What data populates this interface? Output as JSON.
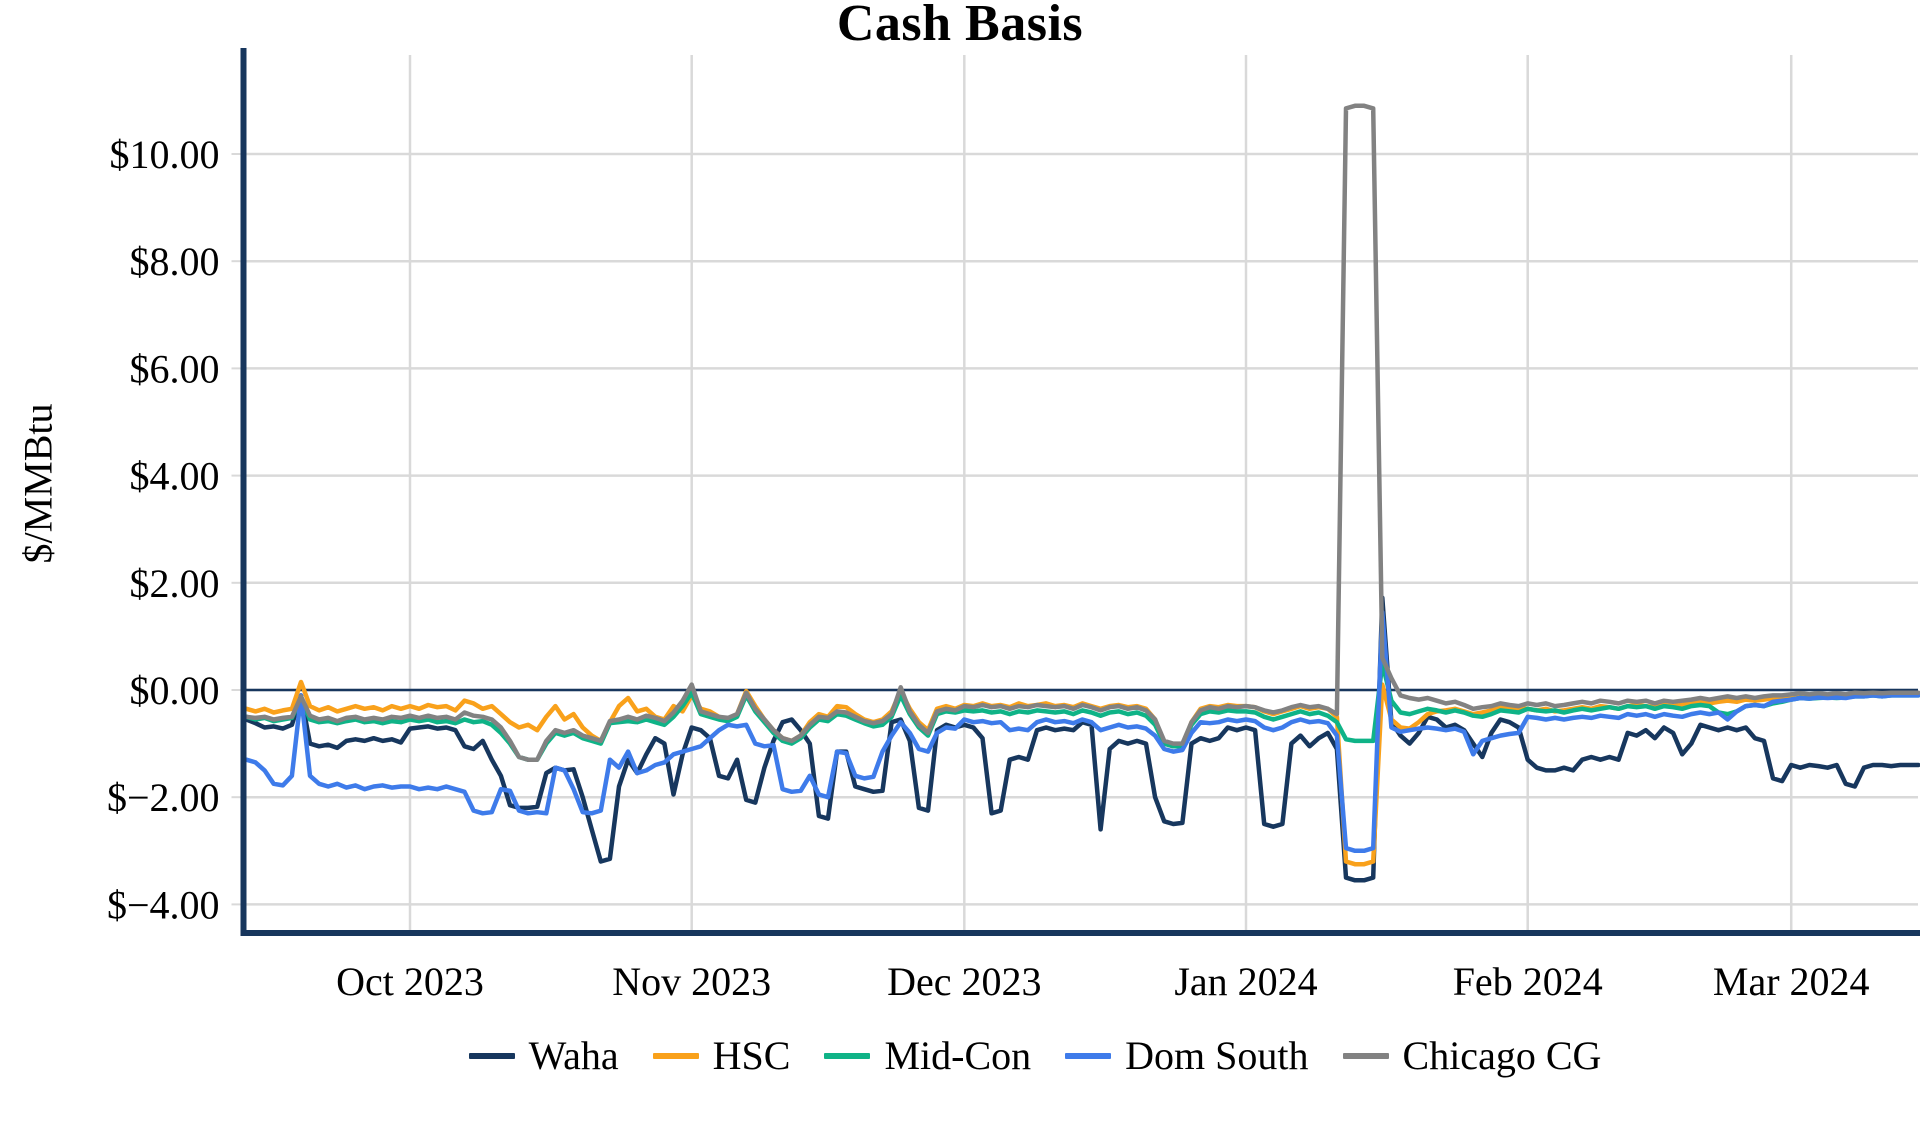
{
  "title": "Cash Basis",
  "y_axis": {
    "label": "$/MMBtu",
    "ticks": [
      {
        "value": 10,
        "label": "$10.00"
      },
      {
        "value": 8,
        "label": "$8.00"
      },
      {
        "value": 6,
        "label": "$6.00"
      },
      {
        "value": 4,
        "label": "$4.00"
      },
      {
        "value": 2,
        "label": "$2.00"
      },
      {
        "value": 0,
        "label": "$0.00"
      },
      {
        "value": -2,
        "label": "$−2.00"
      },
      {
        "value": -4,
        "label": "$−4.00"
      }
    ]
  },
  "x_axis": {
    "ticks": [
      {
        "day": 0,
        "label": "Oct 2023"
      },
      {
        "day": 31,
        "label": "Nov 2023"
      },
      {
        "day": 61,
        "label": "Dec 2023"
      },
      {
        "day": 92,
        "label": "Jan 2024"
      },
      {
        "day": 123,
        "label": "Feb 2024"
      },
      {
        "day": 152,
        "label": "Mar 2024"
      }
    ]
  },
  "legend": {
    "items": [
      {
        "label": "Waha",
        "color": "#17375e"
      },
      {
        "label": "HSC",
        "color": "#f9a11b"
      },
      {
        "label": "Mid-Con",
        "color": "#0fb387"
      },
      {
        "label": "Dom South",
        "color": "#3e7bea"
      },
      {
        "label": "Chicago CG",
        "color": "#828282"
      }
    ]
  },
  "colors": {
    "axis": "#17365d",
    "zero_line": "#17365d",
    "gridline": "#d9d9d9"
  },
  "chart_data": {
    "type": "line",
    "title": "Cash Basis",
    "ylabel": "$/MMBtu",
    "ylim": [
      -4.5,
      11.9
    ],
    "grid": true,
    "legend_position": "bottom",
    "x_unit": "days relative to Oct 1 2023",
    "start_day": -18,
    "series": [
      {
        "name": "Waha",
        "color": "#17375e",
        "values": [
          -0.55,
          -0.62,
          -0.7,
          -0.68,
          -0.72,
          -0.65,
          -0.1,
          -1.0,
          -1.05,
          -1.02,
          -1.08,
          -0.95,
          -0.92,
          -0.95,
          -0.9,
          -0.95,
          -0.92,
          -0.98,
          -0.72,
          -0.7,
          -0.68,
          -0.72,
          -0.7,
          -0.75,
          -1.05,
          -1.1,
          -0.95,
          -1.3,
          -1.6,
          -2.15,
          -2.2,
          -2.2,
          -2.18,
          -1.55,
          -1.45,
          -1.5,
          -1.48,
          -2.0,
          -2.6,
          -3.2,
          -3.15,
          -1.8,
          -1.3,
          -1.55,
          -1.2,
          -0.9,
          -1.0,
          -1.95,
          -1.2,
          -0.7,
          -0.75,
          -0.9,
          -1.6,
          -1.65,
          -1.3,
          -2.05,
          -2.1,
          -1.45,
          -0.95,
          -0.6,
          -0.55,
          -0.75,
          -1.0,
          -2.35,
          -2.4,
          -1.15,
          -1.15,
          -1.8,
          -1.85,
          -1.9,
          -1.88,
          -0.6,
          -0.55,
          -0.95,
          -2.2,
          -2.25,
          -0.75,
          -0.65,
          -0.7,
          -0.65,
          -0.7,
          -0.9,
          -2.3,
          -2.25,
          -1.3,
          -1.25,
          -1.3,
          -0.75,
          -0.7,
          -0.75,
          -0.72,
          -0.75,
          -0.6,
          -0.65,
          -2.6,
          -1.1,
          -0.95,
          -1.0,
          -0.95,
          -1.0,
          -2.0,
          -2.45,
          -2.5,
          -2.48,
          -1.0,
          -0.9,
          -0.95,
          -0.9,
          -0.7,
          -0.75,
          -0.7,
          -0.75,
          -2.5,
          -2.55,
          -2.5,
          -1.0,
          -0.85,
          -1.05,
          -0.9,
          -0.8,
          -1.1,
          -3.5,
          -3.55,
          -3.55,
          -3.5,
          1.72,
          -0.6,
          -0.85,
          -1.0,
          -0.8,
          -0.5,
          -0.55,
          -0.7,
          -0.65,
          -0.75,
          -1.0,
          -1.25,
          -0.8,
          -0.55,
          -0.6,
          -0.7,
          -1.3,
          -1.45,
          -1.5,
          -1.5,
          -1.45,
          -1.5,
          -1.3,
          -1.25,
          -1.3,
          -1.25,
          -1.3,
          -0.8,
          -0.85,
          -0.75,
          -0.9,
          -0.7,
          -0.8,
          -1.2,
          -1.0,
          -0.65,
          -0.7,
          -0.75,
          -0.7,
          -0.75,
          -0.7,
          -0.9,
          -0.95,
          -1.65,
          -1.7,
          -1.4,
          -1.45,
          -1.4,
          -1.42,
          -1.45,
          -1.4,
          -1.75,
          -1.8,
          -1.45,
          -1.4,
          -1.4,
          -1.42,
          -1.4,
          -1.4,
          -1.4
        ]
      },
      {
        "name": "HSC",
        "color": "#f9a11b",
        "values": [
          -0.35,
          -0.4,
          -0.35,
          -0.42,
          -0.38,
          -0.35,
          0.15,
          -0.3,
          -0.38,
          -0.32,
          -0.4,
          -0.35,
          -0.3,
          -0.35,
          -0.32,
          -0.38,
          -0.3,
          -0.35,
          -0.3,
          -0.35,
          -0.28,
          -0.32,
          -0.3,
          -0.38,
          -0.2,
          -0.25,
          -0.35,
          -0.3,
          -0.45,
          -0.6,
          -0.7,
          -0.65,
          -0.75,
          -0.5,
          -0.3,
          -0.55,
          -0.45,
          -0.7,
          -0.85,
          -0.95,
          -0.6,
          -0.3,
          -0.15,
          -0.4,
          -0.35,
          -0.5,
          -0.55,
          -0.3,
          -0.4,
          -0.1,
          -0.35,
          -0.4,
          -0.5,
          -0.55,
          -0.45,
          -0.02,
          -0.3,
          -0.55,
          -0.75,
          -0.9,
          -0.95,
          -0.85,
          -0.6,
          -0.45,
          -0.5,
          -0.3,
          -0.32,
          -0.45,
          -0.55,
          -0.6,
          -0.55,
          -0.4,
          -0.02,
          -0.35,
          -0.6,
          -0.75,
          -0.35,
          -0.3,
          -0.35,
          -0.28,
          -0.3,
          -0.25,
          -0.3,
          -0.28,
          -0.32,
          -0.25,
          -0.3,
          -0.28,
          -0.25,
          -0.3,
          -0.28,
          -0.32,
          -0.25,
          -0.3,
          -0.35,
          -0.3,
          -0.28,
          -0.32,
          -0.3,
          -0.35,
          -0.55,
          -1.0,
          -1.05,
          -1.05,
          -0.6,
          -0.35,
          -0.3,
          -0.32,
          -0.28,
          -0.3,
          -0.3,
          -0.32,
          -0.4,
          -0.45,
          -0.4,
          -0.35,
          -0.3,
          -0.35,
          -0.32,
          -0.35,
          -0.5,
          -3.2,
          -3.25,
          -3.25,
          -3.2,
          0.1,
          -0.55,
          -0.7,
          -0.72,
          -0.6,
          -0.45,
          -0.4,
          -0.38,
          -0.35,
          -0.4,
          -0.45,
          -0.42,
          -0.38,
          -0.3,
          -0.32,
          -0.35,
          -0.35,
          -0.38,
          -0.35,
          -0.4,
          -0.38,
          -0.35,
          -0.32,
          -0.35,
          -0.3,
          -0.32,
          -0.35,
          -0.3,
          -0.28,
          -0.3,
          -0.32,
          -0.28,
          -0.3,
          -0.28,
          -0.25,
          -0.22,
          -0.25,
          -0.22,
          -0.2,
          -0.22,
          -0.18,
          -0.2,
          -0.18,
          -0.15,
          -0.15,
          -0.12,
          -0.1,
          -0.12,
          -0.1,
          -0.12,
          -0.1,
          -0.12,
          -0.1,
          -0.08,
          -0.1,
          -0.08,
          -0.1,
          -0.08,
          -0.08,
          -0.08
        ]
      },
      {
        "name": "Mid-Con",
        "color": "#0fb387",
        "values": [
          -0.5,
          -0.55,
          -0.52,
          -0.58,
          -0.55,
          -0.52,
          -0.15,
          -0.55,
          -0.6,
          -0.58,
          -0.62,
          -0.58,
          -0.55,
          -0.6,
          -0.58,
          -0.62,
          -0.58,
          -0.6,
          -0.55,
          -0.58,
          -0.55,
          -0.6,
          -0.58,
          -0.62,
          -0.55,
          -0.6,
          -0.58,
          -0.65,
          -0.8,
          -1.0,
          -1.25,
          -1.3,
          -1.3,
          -1.0,
          -0.8,
          -0.85,
          -0.8,
          -0.9,
          -0.95,
          -1.0,
          -0.62,
          -0.6,
          -0.58,
          -0.6,
          -0.55,
          -0.6,
          -0.65,
          -0.5,
          -0.3,
          -0.05,
          -0.45,
          -0.5,
          -0.55,
          -0.58,
          -0.5,
          -0.1,
          -0.4,
          -0.6,
          -0.8,
          -0.95,
          -1.0,
          -0.9,
          -0.7,
          -0.55,
          -0.58,
          -0.45,
          -0.48,
          -0.55,
          -0.62,
          -0.68,
          -0.65,
          -0.5,
          -0.1,
          -0.45,
          -0.7,
          -0.85,
          -0.45,
          -0.4,
          -0.42,
          -0.38,
          -0.4,
          -0.38,
          -0.42,
          -0.4,
          -0.45,
          -0.4,
          -0.42,
          -0.38,
          -0.4,
          -0.42,
          -0.4,
          -0.45,
          -0.38,
          -0.42,
          -0.48,
          -0.42,
          -0.4,
          -0.45,
          -0.42,
          -0.48,
          -0.65,
          -1.0,
          -1.05,
          -1.05,
          -0.65,
          -0.45,
          -0.4,
          -0.42,
          -0.38,
          -0.4,
          -0.4,
          -0.42,
          -0.5,
          -0.55,
          -0.5,
          -0.45,
          -0.4,
          -0.45,
          -0.42,
          -0.48,
          -0.6,
          -0.92,
          -0.95,
          -0.95,
          -0.95,
          0.5,
          -0.2,
          -0.42,
          -0.45,
          -0.4,
          -0.35,
          -0.38,
          -0.42,
          -0.38,
          -0.42,
          -0.48,
          -0.5,
          -0.45,
          -0.38,
          -0.4,
          -0.42,
          -0.35,
          -0.38,
          -0.4,
          -0.38,
          -0.42,
          -0.38,
          -0.35,
          -0.38,
          -0.35,
          -0.32,
          -0.35,
          -0.3,
          -0.32,
          -0.3,
          -0.35,
          -0.3,
          -0.32,
          -0.35,
          -0.3,
          -0.28,
          -0.3,
          -0.42,
          -0.45,
          -0.4,
          -0.3,
          -0.28,
          -0.3,
          -0.25,
          -0.22,
          -0.18,
          -0.15,
          -0.16,
          -0.15,
          -0.14,
          -0.15,
          -0.14,
          -0.12,
          -0.12,
          -0.1,
          -0.12,
          -0.1,
          -0.1,
          -0.1,
          -0.1
        ]
      },
      {
        "name": "Dom South",
        "color": "#3e7bea",
        "values": [
          -1.3,
          -1.35,
          -1.5,
          -1.75,
          -1.78,
          -1.6,
          -0.1,
          -1.6,
          -1.75,
          -1.8,
          -1.75,
          -1.82,
          -1.78,
          -1.85,
          -1.8,
          -1.78,
          -1.82,
          -1.8,
          -1.8,
          -1.85,
          -1.82,
          -1.85,
          -1.8,
          -1.85,
          -1.9,
          -2.25,
          -2.3,
          -2.28,
          -1.85,
          -1.88,
          -2.25,
          -2.3,
          -2.28,
          -2.3,
          -1.45,
          -1.5,
          -1.85,
          -2.28,
          -2.3,
          -2.25,
          -1.3,
          -1.45,
          -1.15,
          -1.55,
          -1.5,
          -1.4,
          -1.35,
          -1.2,
          -1.15,
          -1.1,
          -1.05,
          -0.9,
          -0.75,
          -0.65,
          -0.68,
          -0.65,
          -1.0,
          -1.05,
          -1.03,
          -1.85,
          -1.9,
          -1.88,
          -1.6,
          -1.95,
          -2.0,
          -1.15,
          -1.18,
          -1.6,
          -1.65,
          -1.62,
          -1.15,
          -0.85,
          -0.6,
          -0.8,
          -1.1,
          -1.15,
          -0.8,
          -0.7,
          -0.72,
          -0.55,
          -0.6,
          -0.58,
          -0.62,
          -0.6,
          -0.75,
          -0.72,
          -0.75,
          -0.6,
          -0.55,
          -0.6,
          -0.58,
          -0.62,
          -0.55,
          -0.6,
          -0.75,
          -0.7,
          -0.65,
          -0.7,
          -0.68,
          -0.72,
          -0.85,
          -1.1,
          -1.15,
          -1.12,
          -0.8,
          -0.6,
          -0.62,
          -0.6,
          -0.55,
          -0.58,
          -0.55,
          -0.58,
          -0.7,
          -0.75,
          -0.7,
          -0.6,
          -0.55,
          -0.6,
          -0.58,
          -0.62,
          -0.85,
          -2.95,
          -3.0,
          -3.0,
          -2.95,
          1.45,
          -0.7,
          -0.78,
          -0.75,
          -0.72,
          -0.7,
          -0.72,
          -0.75,
          -0.72,
          -0.78,
          -1.2,
          -0.95,
          -0.9,
          -0.85,
          -0.82,
          -0.8,
          -0.5,
          -0.52,
          -0.55,
          -0.52,
          -0.55,
          -0.52,
          -0.5,
          -0.52,
          -0.48,
          -0.5,
          -0.52,
          -0.45,
          -0.48,
          -0.45,
          -0.5,
          -0.45,
          -0.48,
          -0.5,
          -0.45,
          -0.42,
          -0.45,
          -0.42,
          -0.55,
          -0.4,
          -0.3,
          -0.28,
          -0.3,
          -0.22,
          -0.2,
          -0.18,
          -0.15,
          -0.16,
          -0.14,
          -0.15,
          -0.14,
          -0.15,
          -0.12,
          -0.12,
          -0.1,
          -0.12,
          -0.1,
          -0.1,
          -0.1,
          -0.1
        ]
      },
      {
        "name": "Chicago CG",
        "color": "#828282",
        "values": [
          -0.5,
          -0.52,
          -0.5,
          -0.55,
          -0.52,
          -0.5,
          -0.12,
          -0.48,
          -0.55,
          -0.52,
          -0.58,
          -0.52,
          -0.5,
          -0.55,
          -0.52,
          -0.55,
          -0.5,
          -0.52,
          -0.48,
          -0.52,
          -0.48,
          -0.52,
          -0.5,
          -0.55,
          -0.42,
          -0.48,
          -0.5,
          -0.55,
          -0.7,
          -0.95,
          -1.25,
          -1.3,
          -1.3,
          -0.95,
          -0.75,
          -0.8,
          -0.75,
          -0.85,
          -0.9,
          -0.95,
          -0.58,
          -0.55,
          -0.5,
          -0.55,
          -0.48,
          -0.52,
          -0.58,
          -0.42,
          -0.2,
          0.1,
          -0.4,
          -0.45,
          -0.5,
          -0.52,
          -0.45,
          -0.05,
          -0.35,
          -0.55,
          -0.75,
          -0.9,
          -0.95,
          -0.85,
          -0.65,
          -0.5,
          -0.52,
          -0.4,
          -0.42,
          -0.5,
          -0.58,
          -0.62,
          -0.58,
          -0.45,
          0.05,
          -0.4,
          -0.65,
          -0.8,
          -0.4,
          -0.35,
          -0.38,
          -0.3,
          -0.32,
          -0.28,
          -0.32,
          -0.3,
          -0.35,
          -0.3,
          -0.32,
          -0.28,
          -0.3,
          -0.32,
          -0.3,
          -0.35,
          -0.28,
          -0.32,
          -0.38,
          -0.32,
          -0.3,
          -0.35,
          -0.32,
          -0.38,
          -0.55,
          -0.95,
          -1.0,
          -1.0,
          -0.6,
          -0.38,
          -0.32,
          -0.35,
          -0.3,
          -0.32,
          -0.3,
          -0.32,
          -0.38,
          -0.42,
          -0.38,
          -0.32,
          -0.28,
          -0.32,
          -0.3,
          -0.35,
          -0.45,
          10.85,
          10.9,
          10.9,
          10.85,
          0.6,
          0.22,
          -0.1,
          -0.15,
          -0.18,
          -0.15,
          -0.2,
          -0.25,
          -0.22,
          -0.28,
          -0.35,
          -0.32,
          -0.3,
          -0.25,
          -0.28,
          -0.3,
          -0.25,
          -0.28,
          -0.25,
          -0.3,
          -0.28,
          -0.25,
          -0.22,
          -0.25,
          -0.2,
          -0.22,
          -0.25,
          -0.2,
          -0.22,
          -0.2,
          -0.25,
          -0.2,
          -0.22,
          -0.2,
          -0.18,
          -0.15,
          -0.18,
          -0.15,
          -0.12,
          -0.15,
          -0.12,
          -0.15,
          -0.12,
          -0.1,
          -0.1,
          -0.08,
          -0.06,
          -0.08,
          -0.06,
          -0.08,
          -0.06,
          -0.08,
          -0.05,
          -0.06,
          -0.05,
          -0.06,
          -0.05,
          -0.05,
          -0.05,
          -0.05
        ]
      }
    ]
  }
}
